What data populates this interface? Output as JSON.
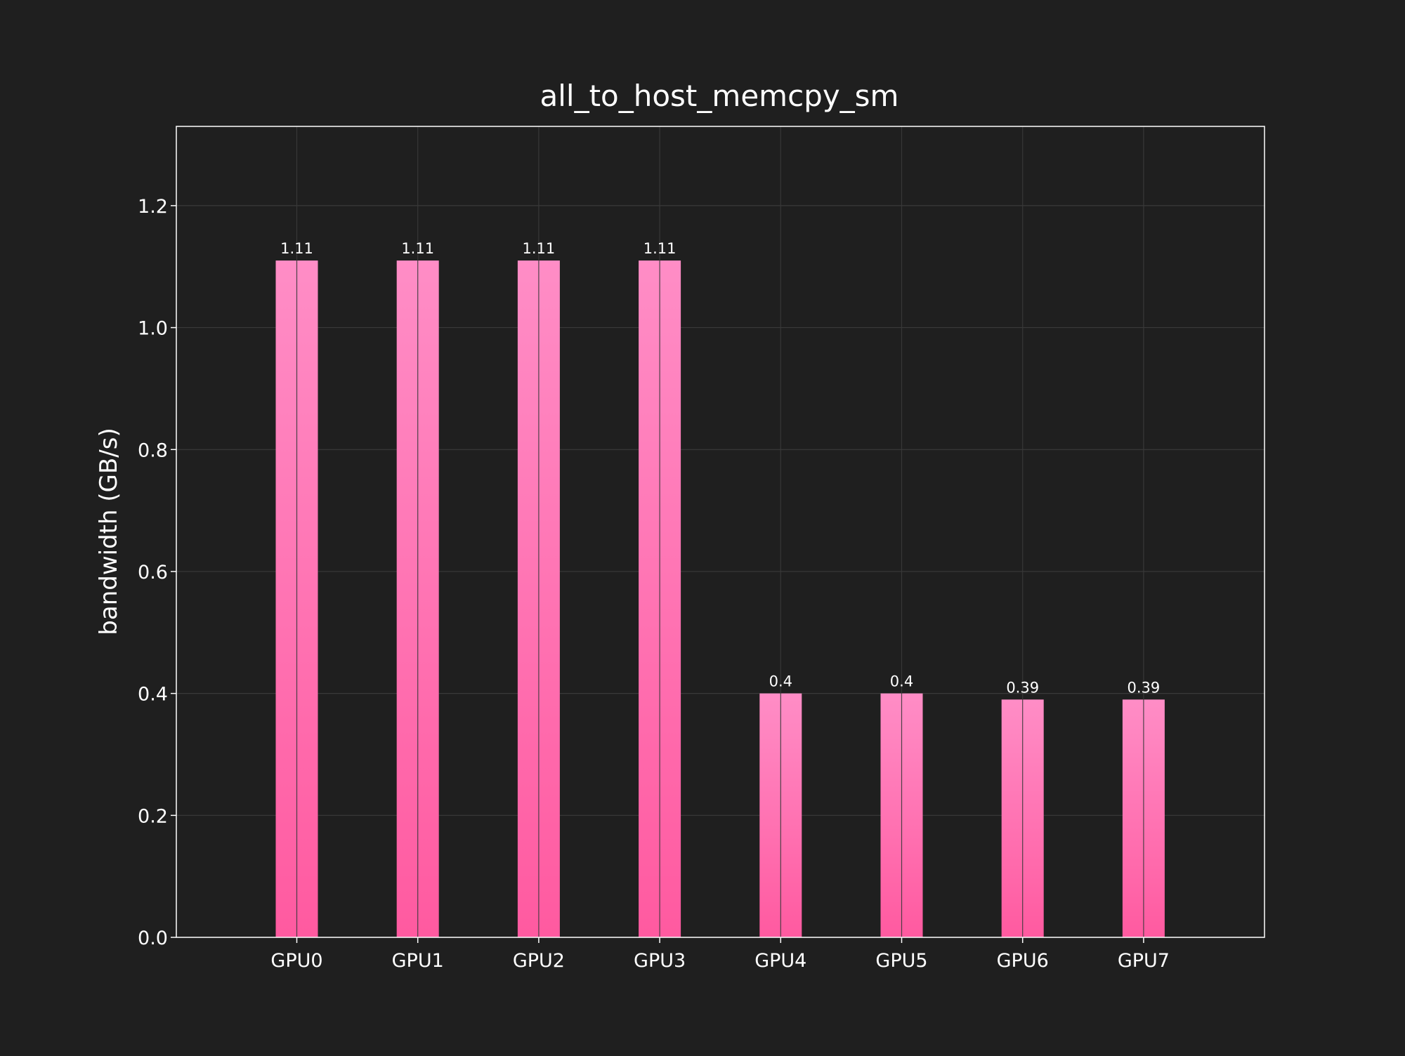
{
  "chart_data": {
    "type": "bar",
    "title": "all_to_host_memcpy_sm",
    "xlabel": "",
    "ylabel": "bandwidth (GB/s)",
    "categories": [
      "GPU0",
      "GPU1",
      "GPU2",
      "GPU3",
      "GPU4",
      "GPU5",
      "GPU6",
      "GPU7"
    ],
    "values": [
      1.11,
      1.11,
      1.11,
      1.11,
      0.4,
      0.4,
      0.39,
      0.39
    ],
    "value_labels": [
      "1.11",
      "1.11",
      "1.11",
      "1.11",
      "0.4",
      "0.4",
      "0.39",
      "0.39"
    ],
    "ylim": [
      0,
      1.33
    ],
    "yticks": [
      "0.0",
      "0.2",
      "0.4",
      "0.6",
      "0.8",
      "1.0",
      "1.2"
    ],
    "grid": true,
    "legend": "none",
    "colors": {
      "background": "#1f1f1f",
      "bar_top": "#ff8dc6",
      "bar_bottom": "#ff5aa0",
      "grid": "#3a3a3a",
      "frame": "#ffffff",
      "text": "#ffffff"
    }
  }
}
